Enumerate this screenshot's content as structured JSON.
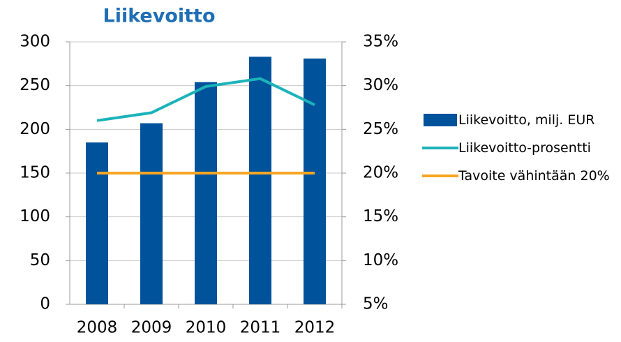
{
  "chart_data": {
    "type": "bar",
    "title": "Liikevoitto",
    "categories": [
      "2008",
      "2009",
      "2010",
      "2011",
      "2012"
    ],
    "series": [
      {
        "name": "Liikevoitto, milj. EUR",
        "type": "bar",
        "color": "#00529b",
        "values": [
          185,
          207,
          254,
          283,
          281
        ]
      },
      {
        "name": "Liikevoitto-prosentti",
        "type": "line",
        "axis": "y2",
        "color": "#1bb3b9",
        "values": [
          26.0,
          26.9,
          29.9,
          30.8,
          27.8
        ]
      },
      {
        "name": "Tavoite vähintään 20%",
        "type": "line",
        "axis": "y2",
        "color": "#f6a623",
        "values": [
          20,
          20,
          20,
          20,
          20
        ]
      }
    ],
    "ylim": [
      0,
      300
    ],
    "yticks": [
      0,
      50,
      100,
      150,
      200,
      250,
      300
    ],
    "y2lim": [
      5,
      35
    ],
    "y2ticks": [
      {
        "value": 5,
        "label": "5%"
      },
      {
        "value": 10,
        "label": "10%"
      },
      {
        "value": 15,
        "label": "15%"
      },
      {
        "value": 20,
        "label": "20%"
      },
      {
        "value": 25,
        "label": "25%"
      },
      {
        "value": 30,
        "label": "30%"
      },
      {
        "value": 35,
        "label": "35%"
      }
    ],
    "grid": true,
    "legend": "right"
  }
}
